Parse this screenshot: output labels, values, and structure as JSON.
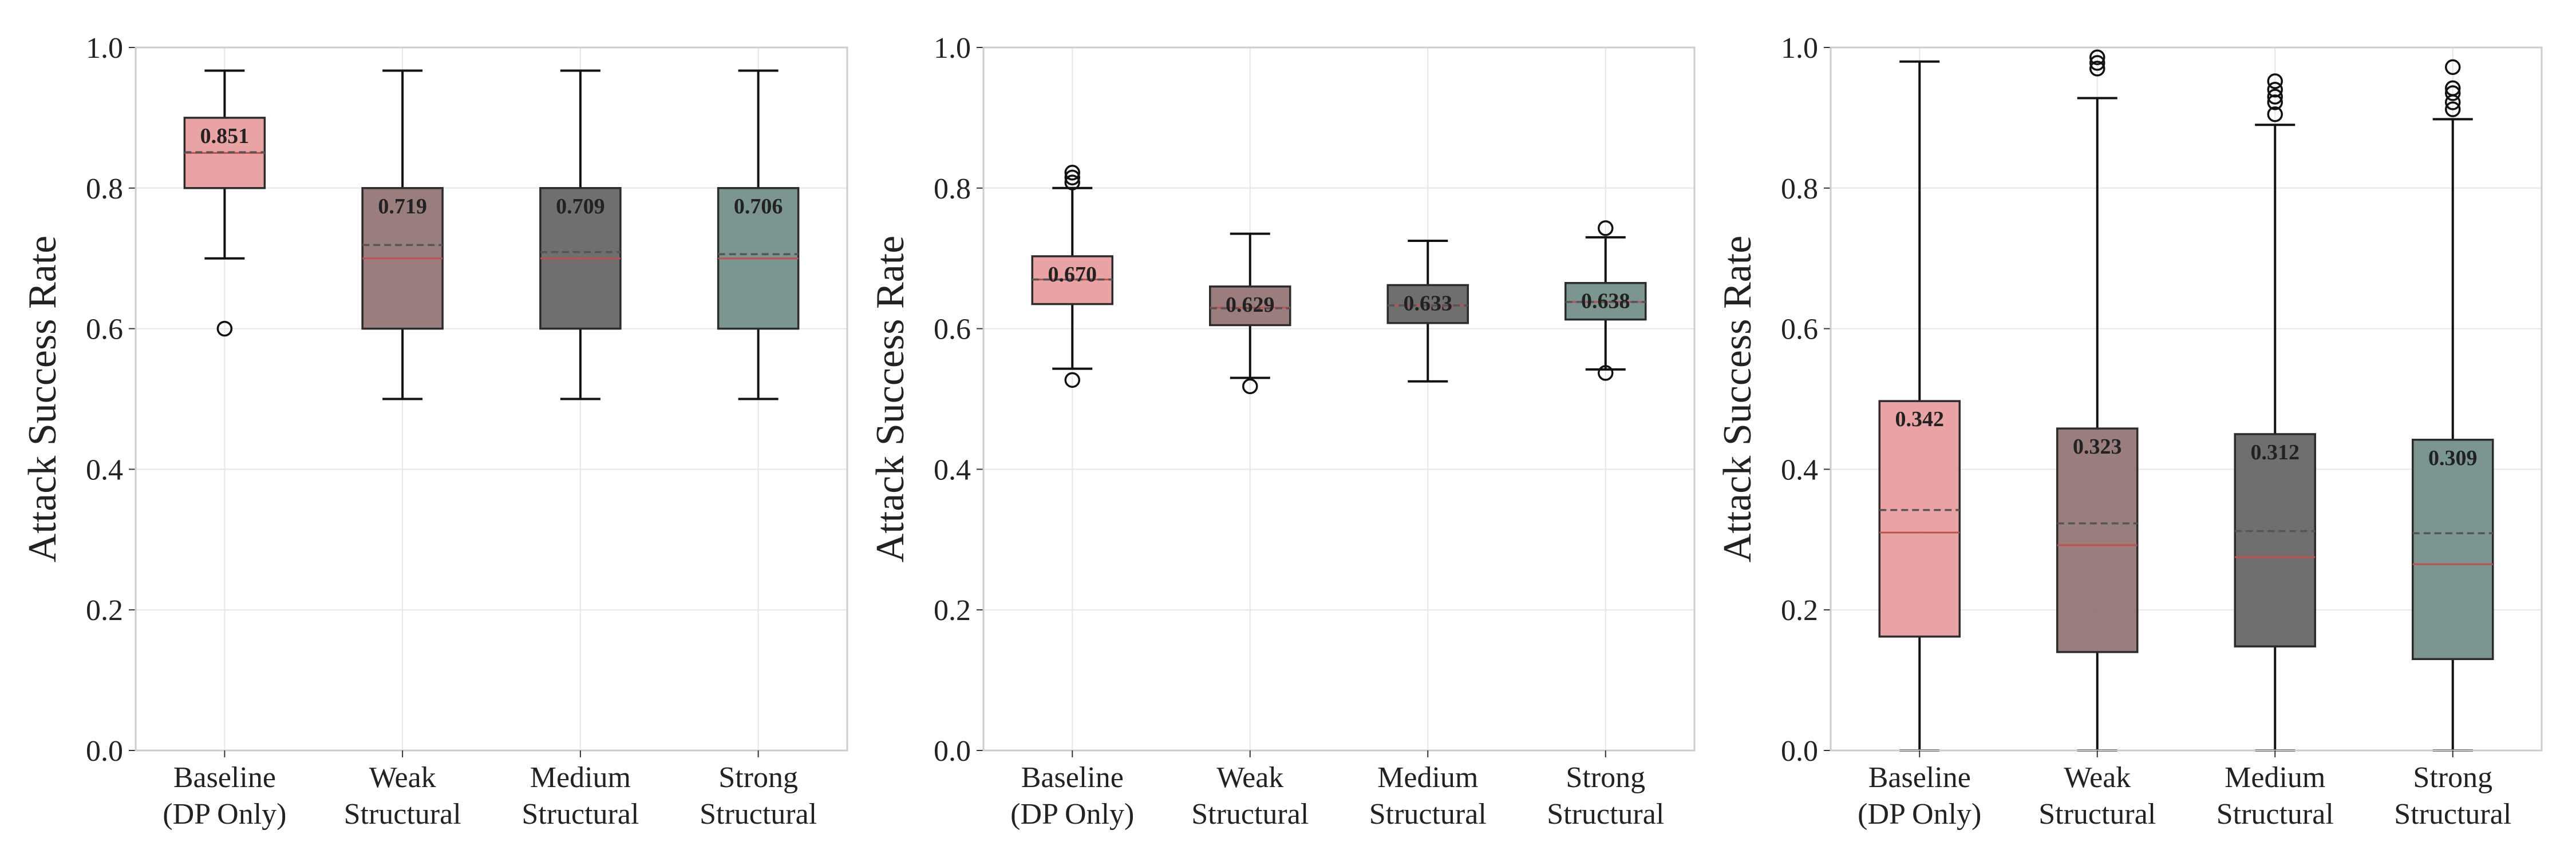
{
  "chart_data": [
    {
      "type": "box",
      "ylabel": "Attack Success Rate",
      "ylim": [
        0.0,
        1.0
      ],
      "yticks": [
        "0.0",
        "0.2",
        "0.4",
        "0.6",
        "0.8",
        "1.0"
      ],
      "grid": true,
      "categories": [
        {
          "line1": "Baseline",
          "line2": "(DP Only)"
        },
        {
          "line1": "Weak",
          "line2": "Structural"
        },
        {
          "line1": "Medium",
          "line2": "Structural"
        },
        {
          "line1": "Strong",
          "line2": "Structural"
        }
      ],
      "boxes": [
        {
          "whislo": 0.7,
          "q1": 0.8,
          "med": 0.85,
          "q3": 0.9,
          "whishi": 0.967,
          "mean": 0.851,
          "mean_label": "0.851",
          "fliers": [
            0.6
          ]
        },
        {
          "whislo": 0.5,
          "q1": 0.6,
          "med": 0.7,
          "q3": 0.8,
          "whishi": 0.967,
          "mean": 0.719,
          "mean_label": "0.719",
          "fliers": []
        },
        {
          "whislo": 0.5,
          "q1": 0.6,
          "med": 0.7,
          "q3": 0.8,
          "whishi": 0.967,
          "mean": 0.709,
          "mean_label": "0.709",
          "fliers": []
        },
        {
          "whislo": 0.5,
          "q1": 0.6,
          "med": 0.7,
          "q3": 0.8,
          "whishi": 0.967,
          "mean": 0.706,
          "mean_label": "0.706",
          "fliers": []
        }
      ]
    },
    {
      "type": "box",
      "ylabel": "Attack Success Rate",
      "ylim": [
        0.0,
        1.0
      ],
      "yticks": [
        "0.0",
        "0.2",
        "0.4",
        "0.6",
        "0.8",
        "1.0"
      ],
      "grid": true,
      "categories": [
        {
          "line1": "Baseline",
          "line2": "(DP Only)"
        },
        {
          "line1": "Weak",
          "line2": "Structural"
        },
        {
          "line1": "Medium",
          "line2": "Structural"
        },
        {
          "line1": "Strong",
          "line2": "Structural"
        }
      ],
      "boxes": [
        {
          "whislo": 0.543,
          "q1": 0.635,
          "med": 0.67,
          "q3": 0.703,
          "whishi": 0.8,
          "mean": 0.67,
          "mean_label": "0.670",
          "fliers": [
            0.527,
            0.808,
            0.815,
            0.822
          ]
        },
        {
          "whislo": 0.53,
          "q1": 0.605,
          "med": 0.63,
          "q3": 0.66,
          "whishi": 0.735,
          "mean": 0.629,
          "mean_label": "0.629",
          "fliers": [
            0.518
          ]
        },
        {
          "whislo": 0.525,
          "q1": 0.608,
          "med": 0.633,
          "q3": 0.662,
          "whishi": 0.725,
          "mean": 0.633,
          "mean_label": "0.633",
          "fliers": []
        },
        {
          "whislo": 0.542,
          "q1": 0.613,
          "med": 0.638,
          "q3": 0.665,
          "whishi": 0.73,
          "mean": 0.638,
          "mean_label": "0.638",
          "fliers": [
            0.537,
            0.743
          ]
        }
      ]
    },
    {
      "type": "box",
      "ylabel": "Attack Success Rate",
      "ylim": [
        0.0,
        1.0
      ],
      "yticks": [
        "0.0",
        "0.2",
        "0.4",
        "0.6",
        "0.8",
        "1.0"
      ],
      "grid": true,
      "categories": [
        {
          "line1": "Baseline",
          "line2": "(DP Only)"
        },
        {
          "line1": "Weak",
          "line2": "Structural"
        },
        {
          "line1": "Medium",
          "line2": "Structural"
        },
        {
          "line1": "Strong",
          "line2": "Structural"
        }
      ],
      "boxes": [
        {
          "whislo": 0.0,
          "q1": 0.162,
          "med": 0.31,
          "q3": 0.497,
          "whishi": 0.98,
          "mean": 0.342,
          "mean_label": "0.342",
          "fliers": []
        },
        {
          "whislo": 0.0,
          "q1": 0.14,
          "med": 0.292,
          "q3": 0.458,
          "whishi": 0.928,
          "mean": 0.323,
          "mean_label": "0.323",
          "fliers": [
            0.97,
            0.978,
            0.986
          ]
        },
        {
          "whislo": 0.0,
          "q1": 0.148,
          "med": 0.275,
          "q3": 0.45,
          "whishi": 0.89,
          "mean": 0.312,
          "mean_label": "0.312",
          "fliers": [
            0.905,
            0.922,
            0.93,
            0.94,
            0.952
          ]
        },
        {
          "whislo": 0.0,
          "q1": 0.13,
          "med": 0.265,
          "q3": 0.442,
          "whishi": 0.898,
          "mean": 0.309,
          "mean_label": "0.309",
          "fliers": [
            0.912,
            0.922,
            0.935,
            0.942,
            0.972
          ]
        }
      ]
    }
  ],
  "colors": {
    "box_fills": [
      "#e8999a",
      "#8f7070",
      "#5f5f5f",
      "#6d8a85"
    ],
    "median": "#c0504d",
    "mean_line": "#555555",
    "frame": "#cccccc",
    "grid": "#e6e6e6",
    "whisker": "#111111"
  }
}
